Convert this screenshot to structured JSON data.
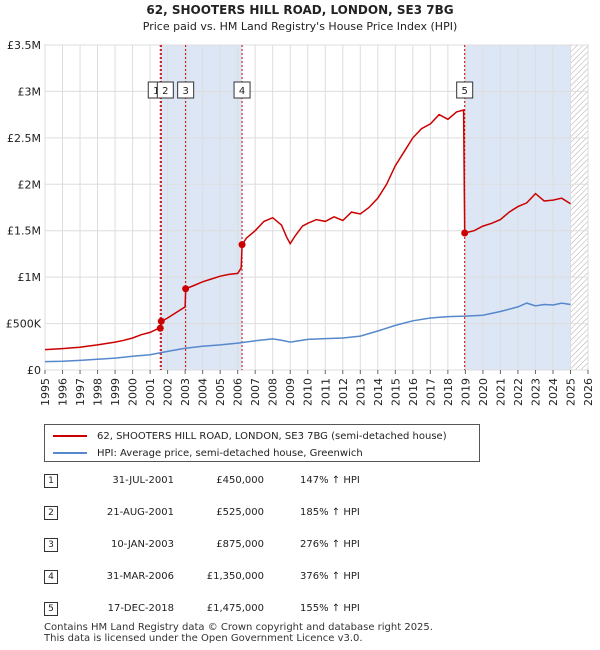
{
  "chart_data": {
    "type": "line",
    "title": "62, SHOOTERS HILL ROAD, LONDON, SE3 7BG",
    "subtitle": "Price paid vs. HM Land Registry's House Price Index (HPI)",
    "xlabel": "",
    "ylabel": "",
    "xlim": [
      1995,
      2026
    ],
    "ylim": [
      0,
      3500000
    ],
    "x_ticks": [
      "1995",
      "1996",
      "1997",
      "1998",
      "1999",
      "2000",
      "2001",
      "2002",
      "2003",
      "2004",
      "2005",
      "2006",
      "2007",
      "2008",
      "2009",
      "2010",
      "2011",
      "2012",
      "2013",
      "2014",
      "2015",
      "2016",
      "2017",
      "2018",
      "2019",
      "2020",
      "2021",
      "2022",
      "2023",
      "2024",
      "2025",
      "2026"
    ],
    "y_ticks": [
      {
        "value": 0,
        "label": "£0"
      },
      {
        "value": 500000,
        "label": "£500K"
      },
      {
        "value": 1000000,
        "label": "£1M"
      },
      {
        "value": 1500000,
        "label": "£1.5M"
      },
      {
        "value": 2000000,
        "label": "£2M"
      },
      {
        "value": 2500000,
        "label": "£2.5M"
      },
      {
        "value": 3000000,
        "label": "£3M"
      },
      {
        "value": 3500000,
        "label": "£3.5M"
      }
    ],
    "grid": true,
    "colors": {
      "property": "#cc0000",
      "hpi": "#5588cc",
      "shade": "#dde6f5",
      "vline": "#cc0000"
    },
    "series": [
      {
        "name": "62, SHOOTERS HILL ROAD, LONDON, SE3 7BG (semi-detached house)",
        "color": "#cc0000",
        "x": [
          1995.0,
          1995.5,
          1996.0,
          1996.5,
          1997.0,
          1997.5,
          1998.0,
          1998.5,
          1999.0,
          1999.5,
          2000.0,
          2000.5,
          2001.0,
          2001.4,
          2001.58,
          2001.64,
          2002.0,
          2002.5,
          2003.0,
          2003.03,
          2003.5,
          2004.0,
          2004.5,
          2005.0,
          2005.5,
          2006.0,
          2006.2,
          2006.25,
          2006.5,
          2007.0,
          2007.5,
          2008.0,
          2008.5,
          2008.8,
          2009.0,
          2009.3,
          2009.7,
          2010.0,
          2010.5,
          2011.0,
          2011.5,
          2012.0,
          2012.5,
          2013.0,
          2013.5,
          2014.0,
          2014.5,
          2015.0,
          2015.5,
          2016.0,
          2016.5,
          2017.0,
          2017.5,
          2018.0,
          2018.5,
          2018.9,
          2018.96,
          2019.5,
          2020.0,
          2020.5,
          2021.0,
          2021.5,
          2022.0,
          2022.5,
          2023.0,
          2023.5,
          2024.0,
          2024.5,
          2025.0
        ],
        "values": [
          220000,
          225000,
          230000,
          238000,
          245000,
          258000,
          270000,
          285000,
          300000,
          320000,
          345000,
          380000,
          405000,
          440000,
          450000,
          525000,
          560000,
          620000,
          680000,
          875000,
          910000,
          950000,
          980000,
          1010000,
          1030000,
          1040000,
          1100000,
          1350000,
          1420000,
          1500000,
          1600000,
          1640000,
          1560000,
          1430000,
          1360000,
          1450000,
          1550000,
          1580000,
          1620000,
          1600000,
          1650000,
          1610000,
          1700000,
          1680000,
          1750000,
          1850000,
          2000000,
          2200000,
          2350000,
          2500000,
          2600000,
          2650000,
          2750000,
          2700000,
          2780000,
          2800000,
          1475000,
          1500000,
          1550000,
          1580000,
          1620000,
          1700000,
          1760000,
          1800000,
          1900000,
          1820000,
          1830000,
          1850000,
          1790000
        ]
      },
      {
        "name": "HPI: Average price, semi-detached house, Greenwich",
        "color": "#5588cc",
        "x": [
          1995.0,
          1996.0,
          1997.0,
          1998.0,
          1999.0,
          2000.0,
          2001.0,
          2002.0,
          2003.0,
          2004.0,
          2005.0,
          2006.0,
          2007.0,
          2008.0,
          2008.5,
          2009.0,
          2009.5,
          2010.0,
          2011.0,
          2012.0,
          2013.0,
          2014.0,
          2015.0,
          2016.0,
          2017.0,
          2018.0,
          2019.0,
          2020.0,
          2021.0,
          2022.0,
          2022.5,
          2023.0,
          2023.5,
          2024.0,
          2024.5,
          2025.0
        ],
        "values": [
          90000,
          95000,
          103000,
          115000,
          128000,
          148000,
          165000,
          200000,
          235000,
          255000,
          270000,
          290000,
          315000,
          335000,
          320000,
          300000,
          315000,
          330000,
          338000,
          345000,
          365000,
          420000,
          480000,
          530000,
          560000,
          575000,
          580000,
          590000,
          630000,
          680000,
          720000,
          690000,
          705000,
          700000,
          720000,
          705000
        ]
      }
    ],
    "shaded_ranges": [
      [
        2001.58,
        2006.25
      ],
      [
        2018.96,
        2025.0
      ]
    ],
    "hatched_from": 2025.0,
    "sales": [
      {
        "num": "1",
        "x": 2001.58,
        "value": 450000,
        "date": "31-JUL-2001",
        "price": "£450,000",
        "hpi": "147% ↑ HPI"
      },
      {
        "num": "2",
        "x": 2001.64,
        "value": 525000,
        "date": "21-AUG-2001",
        "price": "£525,000",
        "hpi": "185% ↑ HPI"
      },
      {
        "num": "3",
        "x": 2003.03,
        "value": 875000,
        "date": "10-JAN-2003",
        "price": "£875,000",
        "hpi": "276% ↑ HPI"
      },
      {
        "num": "4",
        "x": 2006.25,
        "value": 1350000,
        "date": "31-MAR-2006",
        "price": "£1,350,000",
        "hpi": "376% ↑ HPI"
      },
      {
        "num": "5",
        "x": 2018.96,
        "value": 1475000,
        "date": "17-DEC-2018",
        "price": "£1,475,000",
        "hpi": "155% ↑ HPI"
      }
    ]
  },
  "legend": {
    "property": "62, SHOOTERS HILL ROAD, LONDON, SE3 7BG (semi-detached house)",
    "hpi": "HPI: Average price, semi-detached house, Greenwich"
  },
  "footer": {
    "line1": "Contains HM Land Registry data © Crown copyright and database right 2025.",
    "line2": "This data is licensed under the Open Government Licence v3.0."
  }
}
